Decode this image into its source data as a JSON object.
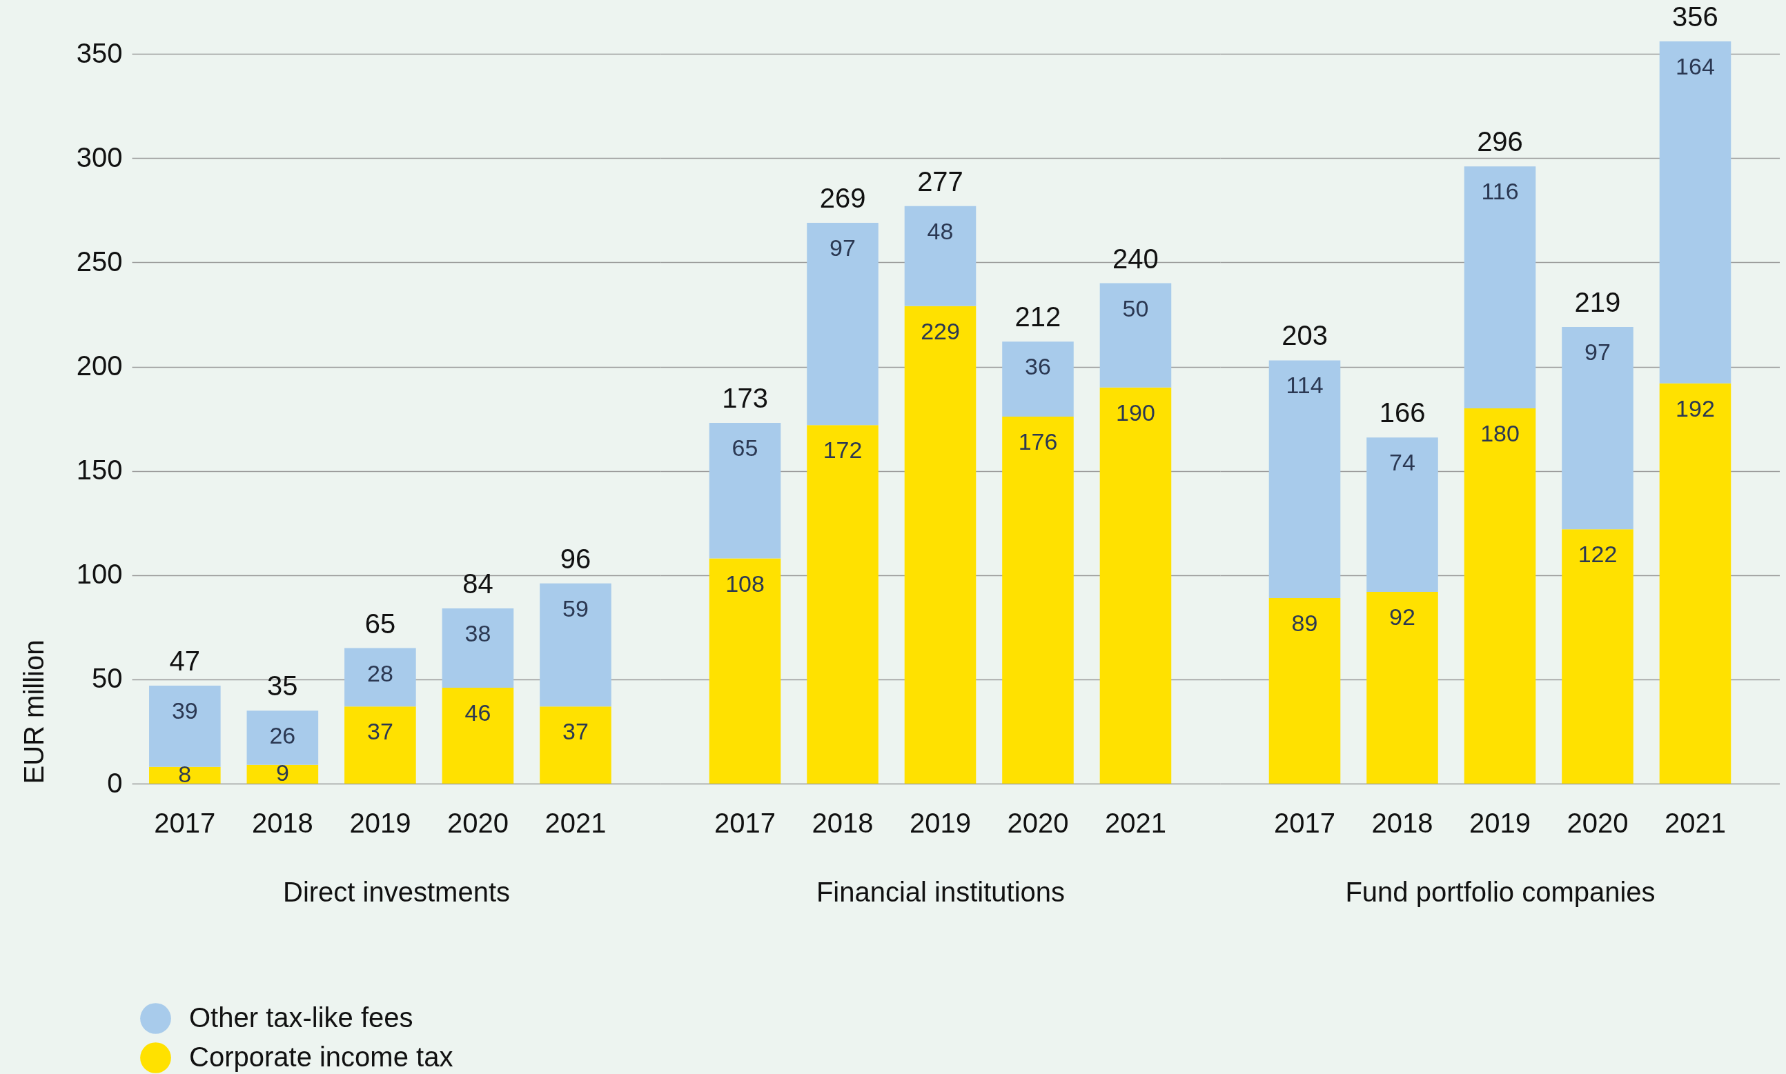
{
  "chart_data": [
    {
      "type": "bar",
      "stacked": true,
      "categories": [
        "2017",
        "2018",
        "2019",
        "2020",
        "2021"
      ],
      "series": [
        {
          "name": "Corporate income tax",
          "color": "#ffe100",
          "values": [
            8,
            9,
            37,
            46,
            37
          ]
        },
        {
          "name": "Other tax-like fees",
          "color": "#a8cbeb",
          "values": [
            39,
            26,
            28,
            38,
            59
          ]
        }
      ],
      "totals": [
        "47",
        "35",
        "65",
        "84",
        "96"
      ],
      "data_labels": true,
      "xlabel": "Direct investments",
      "ylabel": "EUR million",
      "ylim": [
        0,
        350
      ],
      "yticks": [
        0,
        50,
        100,
        150,
        200,
        250,
        300,
        350
      ],
      "grid": "y",
      "legend": "bottom left"
    },
    {
      "type": "bar",
      "stacked": true,
      "categories": [
        "2017",
        "2018",
        "2019",
        "2020",
        "2021"
      ],
      "series": [
        {
          "color": "#ffe100",
          "values": [
            108,
            172,
            229,
            176,
            190
          ]
        },
        {
          "color": "#a8cbeb",
          "values": [
            65,
            97,
            48,
            36,
            50
          ]
        }
      ],
      "totals": [
        "173",
        "269",
        "277",
        "212",
        "240"
      ],
      "data_labels": true,
      "xlabel": "Financial institutions",
      "ylim": [
        0,
        350
      ],
      "yticks": [
        0,
        50,
        100,
        150,
        200,
        250,
        300,
        350
      ],
      "grid": "y",
      "tick_labels": "x"
    },
    {
      "type": "bar",
      "stacked": true,
      "categories": [
        "2017",
        "2018",
        "2019",
        "2020",
        "2021"
      ],
      "series": [
        {
          "color": "#ffe100",
          "values": [
            89,
            92,
            180,
            122,
            192
          ]
        },
        {
          "color": "#a8cbeb",
          "values": [
            114,
            74,
            116,
            97,
            164
          ]
        }
      ],
      "totals": [
        "203",
        "166",
        "296",
        "219",
        "356"
      ],
      "data_labels": true,
      "xlabel": "Fund portfolio companies",
      "ylim": [
        0,
        356
      ],
      "yticks": [
        0,
        50,
        100,
        150,
        200,
        250,
        300,
        350
      ],
      "grid": "y",
      "tick_labels": "x"
    }
  ]
}
